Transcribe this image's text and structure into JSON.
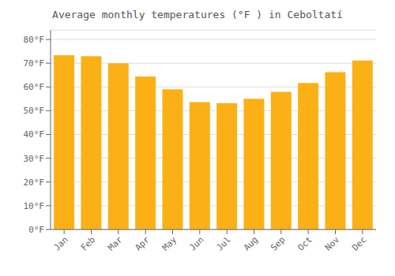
{
  "chart_data": {
    "type": "bar",
    "title": "Average monthly temperatures (°F ) in Ceboltatí",
    "categories": [
      "Jan",
      "Feb",
      "Mar",
      "Apr",
      "May",
      "Jun",
      "Jul",
      "Aug",
      "Sep",
      "Oct",
      "Nov",
      "Dec"
    ],
    "values": [
      73.4,
      73.0,
      70.0,
      64.4,
      59.0,
      53.6,
      53.2,
      55.0,
      57.9,
      61.7,
      66.2,
      71.1
    ],
    "color": "#FBB116",
    "ylim": [
      0,
      84
    ],
    "yticks": [
      {
        "value": 0,
        "label": "0°F"
      },
      {
        "value": 10,
        "label": "10°F"
      },
      {
        "value": 20,
        "label": "20°F"
      },
      {
        "value": 30,
        "label": "30°F"
      },
      {
        "value": 40,
        "label": "40°F"
      },
      {
        "value": 50,
        "label": "50°F"
      },
      {
        "value": 60,
        "label": "60°F"
      },
      {
        "value": 70,
        "label": "70°F"
      },
      {
        "value": 80,
        "label": "80°F"
      }
    ],
    "grid": true
  }
}
